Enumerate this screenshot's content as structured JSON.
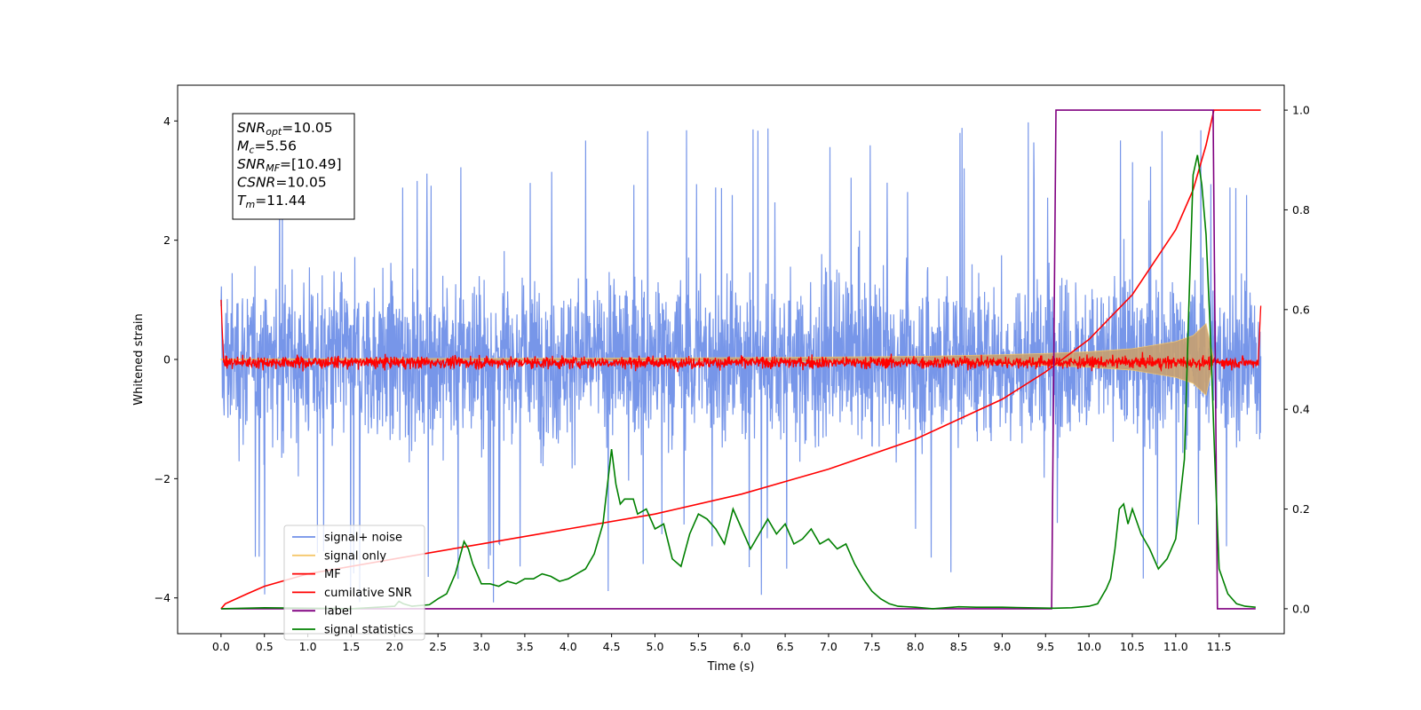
{
  "chart_data": {
    "type": "line",
    "xlabel": "Time (s)",
    "ylabel": "Whitened strain",
    "xlim": [
      -0.5,
      12.25
    ],
    "ylim": [
      -4.6,
      4.6
    ],
    "y2lim": [
      -0.05,
      1.05
    ],
    "x_ticks": [
      0.0,
      0.5,
      1.0,
      1.5,
      2.0,
      2.5,
      3.0,
      3.5,
      4.0,
      4.5,
      5.0,
      5.5,
      6.0,
      6.5,
      7.0,
      7.5,
      8.0,
      8.5,
      9.0,
      9.5,
      10.0,
      10.5,
      11.0,
      11.5
    ],
    "x_tick_labels": [
      "0.0",
      "0.5",
      "1.0",
      "1.5",
      "2.0",
      "2.5",
      "3.0",
      "3.5",
      "4.0",
      "4.5",
      "5.0",
      "5.5",
      "6.0",
      "6.5",
      "7.0",
      "7.5",
      "8.0",
      "8.5",
      "9.0",
      "9.5",
      "10.0",
      "10.5",
      "11.0",
      "11.5"
    ],
    "y_ticks": [
      -4,
      -2,
      0,
      2,
      4
    ],
    "y_tick_labels": [
      "−4",
      "−2",
      "0",
      "2",
      "4"
    ],
    "y2_ticks": [
      0.0,
      0.2,
      0.4,
      0.6,
      0.8,
      1.0
    ],
    "y2_tick_labels": [
      "0.0",
      "0.2",
      "0.4",
      "0.6",
      "0.8",
      "1.0"
    ],
    "grid": false,
    "legend_placement": "lower-left",
    "annotation": [
      {
        "base": "SNR",
        "sub": "opt",
        "value": "=10.05"
      },
      {
        "base": "M",
        "sub": "c",
        "value": "=5.56"
      },
      {
        "base": "SNR",
        "sub": "MF",
        "value": "=[10.49]"
      },
      {
        "base": "CSNR",
        "sub": "",
        "value": "=10.05"
      },
      {
        "base": "T",
        "sub": "m",
        "value": "=11.44"
      }
    ],
    "series": [
      {
        "name": "signal+ noise",
        "color": "#7090e8",
        "axis": "left",
        "description_params": {
          "x_start": 0.0,
          "x_end": 11.98,
          "typical_range": [
            -2.3,
            2.4
          ],
          "max_spike": 4.15,
          "min_spike": -4.15
        }
      },
      {
        "name": "signal only",
        "color": "#f5c76a",
        "axis": "left",
        "x": [
          0.0,
          2.0,
          4.0,
          6.0,
          8.0,
          9.0,
          9.5,
          10.0,
          10.5,
          11.0,
          11.2,
          11.35,
          11.44
        ],
        "envelope": [
          0.01,
          0.015,
          0.02,
          0.03,
          0.05,
          0.08,
          0.1,
          0.13,
          0.18,
          0.3,
          0.4,
          0.6,
          0.0
        ]
      },
      {
        "name": "MF",
        "color": "#ff0000",
        "axis": "left",
        "description_params": {
          "x_start": 0.0,
          "x_end": 11.98,
          "baseline": -0.05,
          "noise_amplitude": 0.13,
          "start_value": 1.0,
          "end_value": 0.9
        }
      },
      {
        "name": "cumilative SNR",
        "color": "#ff0000",
        "axis": "right",
        "x": [
          0.0,
          0.05,
          0.3,
          0.5,
          1.0,
          2.0,
          3.0,
          4.0,
          5.0,
          6.0,
          7.0,
          8.0,
          9.0,
          9.5,
          10.0,
          10.5,
          11.0,
          11.2,
          11.35,
          11.44,
          11.98
        ],
        "values": [
          0.0,
          0.01,
          0.03,
          0.045,
          0.07,
          0.1,
          0.13,
          0.16,
          0.19,
          0.23,
          0.28,
          0.34,
          0.42,
          0.475,
          0.54,
          0.63,
          0.76,
          0.84,
          0.93,
          1.0,
          1.0
        ]
      },
      {
        "name": "label",
        "color": "#800080",
        "axis": "right",
        "x": [
          0.0,
          9.57,
          9.62,
          11.43,
          11.48,
          11.92
        ],
        "values": [
          0.0,
          0.0,
          1.0,
          1.0,
          0.0,
          0.0
        ]
      },
      {
        "name": "signal statistics",
        "color": "#008000",
        "axis": "right",
        "x": [
          0.0,
          0.5,
          1.0,
          1.5,
          2.0,
          2.05,
          2.1,
          2.2,
          2.4,
          2.5,
          2.6,
          2.7,
          2.8,
          2.85,
          2.9,
          3.0,
          3.1,
          3.2,
          3.3,
          3.4,
          3.5,
          3.6,
          3.7,
          3.8,
          3.9,
          4.0,
          4.1,
          4.2,
          4.3,
          4.4,
          4.5,
          4.55,
          4.6,
          4.65,
          4.7,
          4.75,
          4.8,
          4.9,
          5.0,
          5.1,
          5.2,
          5.3,
          5.4,
          5.5,
          5.6,
          5.7,
          5.8,
          5.9,
          6.0,
          6.1,
          6.2,
          6.3,
          6.4,
          6.5,
          6.6,
          6.7,
          6.8,
          6.9,
          7.0,
          7.1,
          7.2,
          7.3,
          7.4,
          7.5,
          7.6,
          7.7,
          7.8,
          8.0,
          8.2,
          8.5,
          8.7,
          9.0,
          9.3,
          9.6,
          9.8,
          10.0,
          10.1,
          10.2,
          10.25,
          10.3,
          10.35,
          10.4,
          10.45,
          10.5,
          10.6,
          10.7,
          10.8,
          10.9,
          11.0,
          11.1,
          11.15,
          11.2,
          11.25,
          11.3,
          11.35,
          11.4,
          11.45,
          11.5,
          11.6,
          11.7,
          11.8,
          11.92
        ],
        "values": [
          0.0,
          0.002,
          0.001,
          0.0,
          0.005,
          0.015,
          0.01,
          0.005,
          0.008,
          0.02,
          0.03,
          0.07,
          0.135,
          0.12,
          0.09,
          0.05,
          0.05,
          0.045,
          0.055,
          0.05,
          0.06,
          0.06,
          0.07,
          0.065,
          0.055,
          0.06,
          0.07,
          0.08,
          0.11,
          0.17,
          0.32,
          0.25,
          0.21,
          0.22,
          0.22,
          0.22,
          0.19,
          0.2,
          0.16,
          0.17,
          0.1,
          0.085,
          0.15,
          0.19,
          0.18,
          0.16,
          0.13,
          0.2,
          0.16,
          0.12,
          0.15,
          0.18,
          0.15,
          0.17,
          0.13,
          0.14,
          0.16,
          0.13,
          0.14,
          0.12,
          0.13,
          0.09,
          0.06,
          0.035,
          0.02,
          0.01,
          0.005,
          0.003,
          0.0,
          0.004,
          0.003,
          0.003,
          0.002,
          0.001,
          0.002,
          0.005,
          0.01,
          0.04,
          0.06,
          0.12,
          0.2,
          0.21,
          0.17,
          0.2,
          0.15,
          0.12,
          0.08,
          0.1,
          0.14,
          0.3,
          0.6,
          0.87,
          0.91,
          0.85,
          0.75,
          0.55,
          0.3,
          0.08,
          0.03,
          0.01,
          0.005,
          0.003
        ]
      }
    ]
  },
  "legend": {
    "items": [
      {
        "label": "signal+ noise",
        "color": "#7090e8"
      },
      {
        "label": "signal only",
        "color": "#f5c76a"
      },
      {
        "label": "MF",
        "color": "#ff0000"
      },
      {
        "label": "cumilative SNR",
        "color": "#ff0000"
      },
      {
        "label": "label",
        "color": "#800080"
      },
      {
        "label": "signal statistics",
        "color": "#008000"
      }
    ]
  }
}
